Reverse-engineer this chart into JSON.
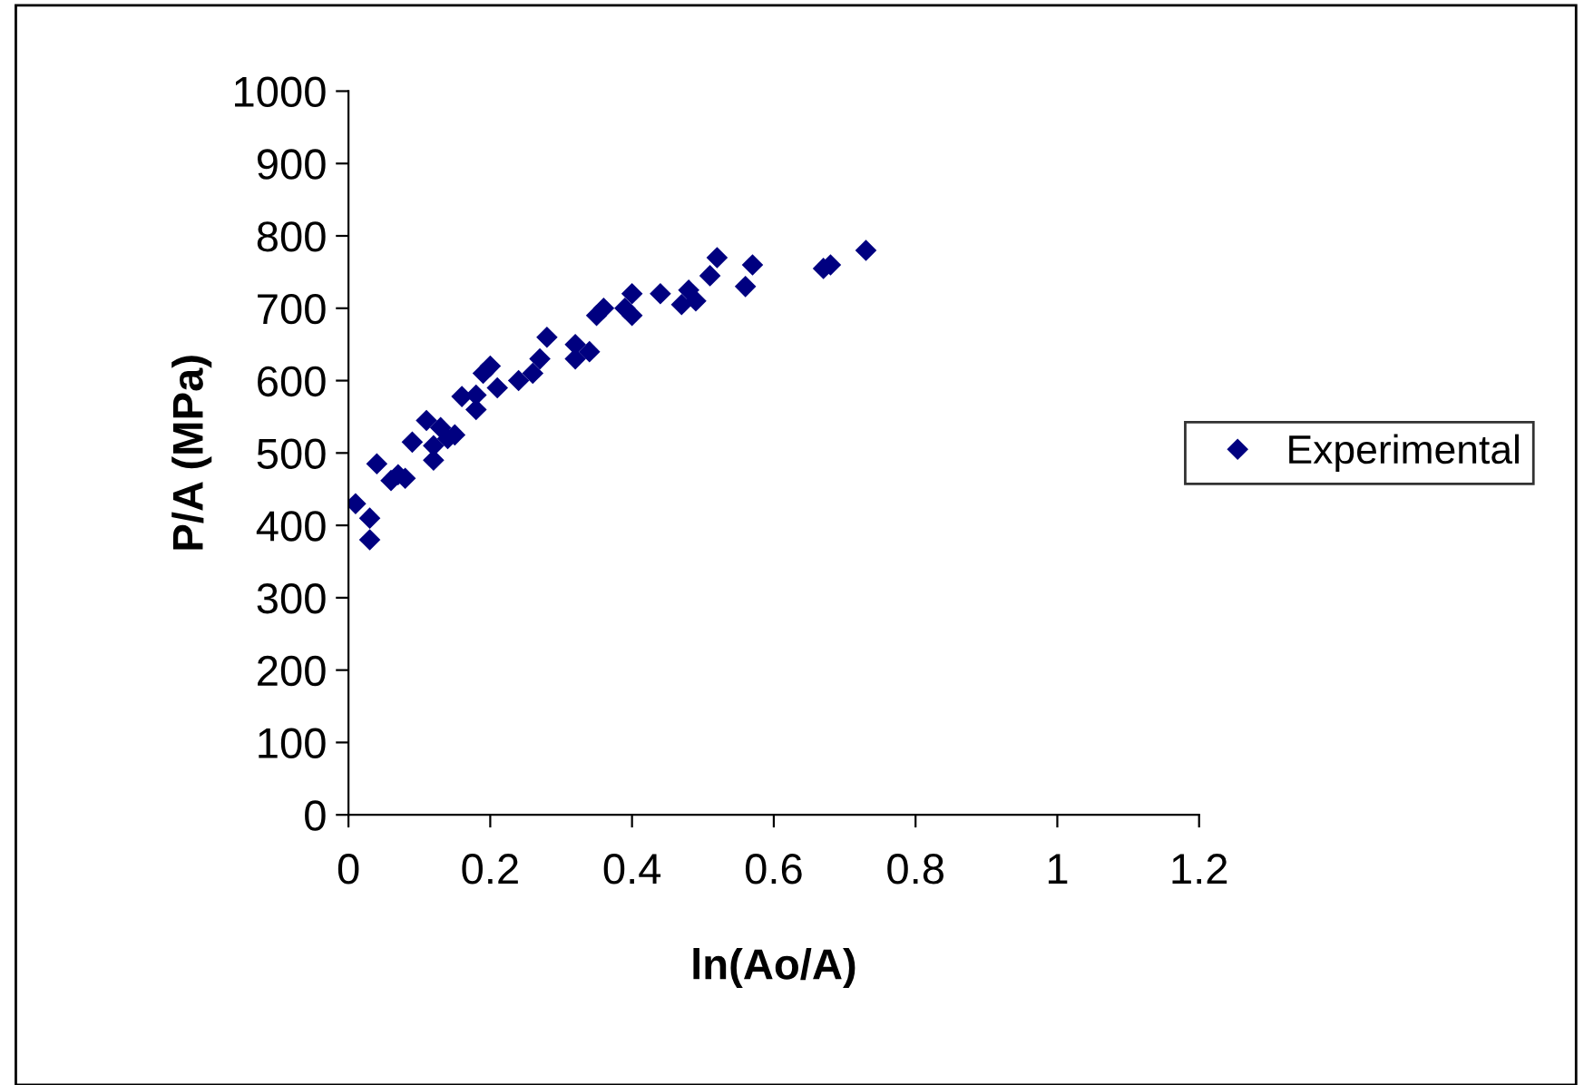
{
  "chart_data": {
    "type": "scatter",
    "xlabel": "ln(Ao/A)",
    "ylabel": "P/A (MPa)",
    "xlim": [
      0,
      1.2
    ],
    "xticks": [
      0,
      0.2,
      0.4,
      0.6,
      0.8,
      1,
      1.2
    ],
    "ylim": [
      0,
      1000
    ],
    "yticks": [
      0,
      100,
      200,
      300,
      400,
      500,
      600,
      700,
      800,
      900,
      1000
    ],
    "grid": false,
    "legend": "right",
    "marker": "diamond",
    "series": [
      {
        "name": "Experimental",
        "color": "#000080",
        "x": [
          0.01,
          0.03,
          0.03,
          0.04,
          0.06,
          0.07,
          0.08,
          0.09,
          0.11,
          0.12,
          0.12,
          0.13,
          0.14,
          0.15,
          0.16,
          0.18,
          0.18,
          0.19,
          0.2,
          0.21,
          0.24,
          0.26,
          0.27,
          0.28,
          0.32,
          0.32,
          0.34,
          0.35,
          0.36,
          0.39,
          0.4,
          0.4,
          0.44,
          0.47,
          0.48,
          0.49,
          0.51,
          0.52,
          0.56,
          0.57,
          0.67,
          0.68,
          0.73
        ],
        "values": [
          430,
          410,
          380,
          485,
          462,
          470,
          465,
          515,
          545,
          490,
          510,
          535,
          520,
          525,
          578,
          560,
          580,
          610,
          620,
          590,
          600,
          610,
          630,
          660,
          630,
          650,
          640,
          690,
          700,
          700,
          690,
          720,
          720,
          705,
          725,
          710,
          745,
          770,
          730,
          760,
          755,
          760,
          780
        ]
      }
    ]
  }
}
